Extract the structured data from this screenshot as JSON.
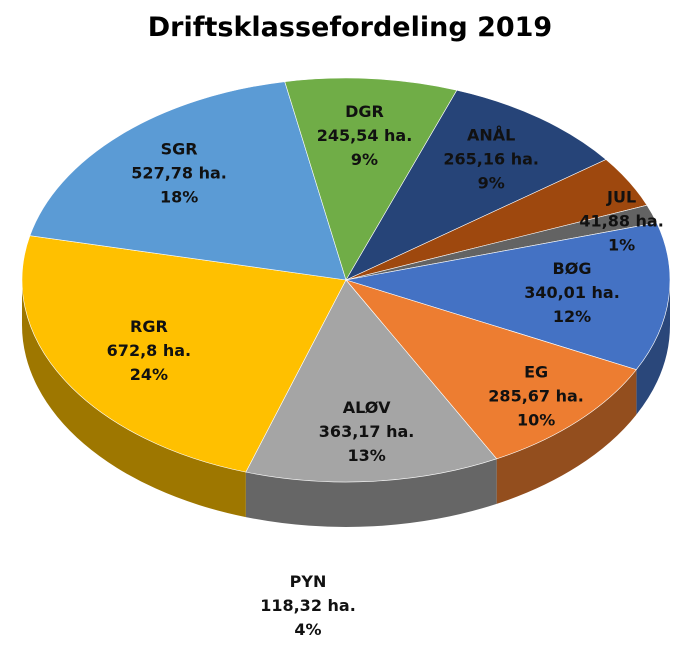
{
  "chart_data": {
    "type": "pie",
    "title": "Driftsklassefordeling 2019",
    "label_color": "#111111",
    "slices": [
      {
        "category": "RGR",
        "value": 672.8,
        "value_label": "672,8 ha.",
        "percent_label": "24%",
        "color": "#FFC000"
      },
      {
        "category": "SGR",
        "value": 527.78,
        "value_label": "527,78 ha.",
        "percent_label": "18%",
        "color": "#5B9BD5"
      },
      {
        "category": "DGR",
        "value": 245.54,
        "value_label": "245,54 ha.",
        "percent_label": "9%",
        "color": "#70AD47"
      },
      {
        "category": "ANÅL",
        "value": 265.16,
        "value_label": "265,16 ha.",
        "percent_label": "9%",
        "color": "#264478"
      },
      {
        "category": "PYN",
        "value": 118.32,
        "value_label": "118,32 ha.",
        "percent_label": "4%",
        "color": "#9E480E"
      },
      {
        "category": "JUL",
        "value": 41.88,
        "value_label": "41,88 ha.",
        "percent_label": "1%",
        "color": "#636363"
      },
      {
        "category": "BØG",
        "value": 340.01,
        "value_label": "340,01 ha.",
        "percent_label": "12%",
        "color": "#4472C4"
      },
      {
        "category": "EG",
        "value": 285.67,
        "value_label": "285,67 ha.",
        "percent_label": "10%",
        "color": "#ED7D31"
      },
      {
        "category": "ALØV",
        "value": 363.17,
        "value_label": "363,17 ha.",
        "percent_label": "13%",
        "color": "#A5A5A5"
      }
    ]
  }
}
